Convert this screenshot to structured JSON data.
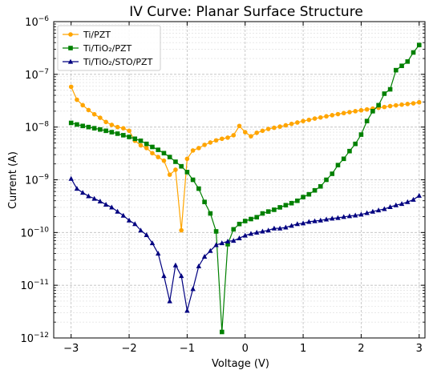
{
  "chart_data": {
    "type": "line",
    "title": "IV Curve: Planar Surface Structure",
    "xlabel": "Voltage (V)",
    "ylabel": "Current (A)",
    "xlim": [
      -3.3,
      3.1
    ],
    "ylim": [
      1e-12,
      1e-06
    ],
    "yscale": "log",
    "x_ticks": [
      -3,
      -2,
      -1,
      0,
      1,
      2,
      3
    ],
    "x_tick_labels": [
      "−3",
      "−2",
      "−1",
      "0",
      "1",
      "2",
      "3"
    ],
    "y_ticks": [
      {
        "value": 1e-12,
        "base": "10",
        "exp": "−12"
      },
      {
        "value": 1e-11,
        "base": "10",
        "exp": "−11"
      },
      {
        "value": 1e-10,
        "base": "10",
        "exp": "−10"
      },
      {
        "value": 1e-09,
        "base": "10",
        "exp": "−9"
      },
      {
        "value": 1e-08,
        "base": "10",
        "exp": "−8"
      },
      {
        "value": 1e-07,
        "base": "10",
        "exp": "−7"
      },
      {
        "value": 1e-06,
        "base": "10",
        "exp": "−6"
      }
    ],
    "grid": true,
    "legend_position": "top-left",
    "series": [
      {
        "name": "Ti/PZT",
        "color": "#FFA500",
        "marker": "circle",
        "x": [
          -3.0,
          -2.9,
          -2.8,
          -2.7,
          -2.6,
          -2.5,
          -2.4,
          -2.3,
          -2.2,
          -2.1,
          -2.0,
          -1.9,
          -1.8,
          -1.7,
          -1.6,
          -1.5,
          -1.4,
          -1.3,
          -1.2,
          -1.1,
          -1.0,
          -0.9,
          -0.8,
          -0.7,
          -0.6,
          -0.5,
          -0.4,
          -0.3,
          -0.2,
          -0.1,
          0.0,
          0.1,
          0.2,
          0.3,
          0.4,
          0.5,
          0.6,
          0.7,
          0.8,
          0.9,
          1.0,
          1.1,
          1.2,
          1.3,
          1.4,
          1.5,
          1.6,
          1.7,
          1.8,
          1.9,
          2.0,
          2.1,
          2.2,
          2.3,
          2.4,
          2.5,
          2.6,
          2.7,
          2.8,
          2.9,
          3.0
        ],
        "y": [
          5.8e-08,
          3.3e-08,
          2.6e-08,
          2.1e-08,
          1.75e-08,
          1.5e-08,
          1.25e-08,
          1.1e-08,
          1e-08,
          9.5e-09,
          8.5e-09,
          5.5e-09,
          4.5e-09,
          4e-09,
          3.2e-09,
          2.7e-09,
          2.3e-09,
          1.25e-09,
          1.55e-09,
          1.1e-10,
          2.5e-09,
          3.6e-09,
          4e-09,
          4.6e-09,
          5.1e-09,
          5.6e-09,
          6e-09,
          6.3e-09,
          7e-09,
          1.05e-08,
          8e-09,
          6.7e-09,
          7.8e-09,
          8.5e-09,
          9.2e-09,
          9.7e-09,
          1.02e-08,
          1.08e-08,
          1.15e-08,
          1.22e-08,
          1.3e-08,
          1.37e-08,
          1.45e-08,
          1.52e-08,
          1.6e-08,
          1.68e-08,
          1.76e-08,
          1.84e-08,
          1.92e-08,
          2e-08,
          2.08e-08,
          2.16e-08,
          2.24e-08,
          2.32e-08,
          2.4e-08,
          2.5e-08,
          2.58e-08,
          2.66e-08,
          2.74e-08,
          2.82e-08,
          2.95e-08
        ]
      },
      {
        "name": "Ti/TiO₂/PZT",
        "color": "#008000",
        "marker": "square",
        "x": [
          -3.0,
          -2.9,
          -2.8,
          -2.7,
          -2.6,
          -2.5,
          -2.4,
          -2.3,
          -2.2,
          -2.1,
          -2.0,
          -1.9,
          -1.8,
          -1.7,
          -1.6,
          -1.5,
          -1.4,
          -1.3,
          -1.2,
          -1.1,
          -1.0,
          -0.9,
          -0.8,
          -0.7,
          -0.6,
          -0.5,
          -0.4,
          -0.3,
          -0.2,
          -0.1,
          0.0,
          0.1,
          0.2,
          0.3,
          0.4,
          0.5,
          0.6,
          0.7,
          0.8,
          0.9,
          1.0,
          1.1,
          1.2,
          1.3,
          1.4,
          1.5,
          1.6,
          1.7,
          1.8,
          1.9,
          2.0,
          2.1,
          2.2,
          2.3,
          2.4,
          2.5,
          2.6,
          2.7,
          2.8,
          2.9,
          3.0
        ],
        "y": [
          1.2e-08,
          1.12e-08,
          1.05e-08,
          1e-08,
          9.5e-09,
          9e-09,
          8.5e-09,
          8e-09,
          7.5e-09,
          7e-09,
          6.5e-09,
          6e-09,
          5.5e-09,
          4.8e-09,
          4.2e-09,
          3.7e-09,
          3.2e-09,
          2.7e-09,
          2.2e-09,
          1.8e-09,
          1.4e-09,
          1e-09,
          6.8e-10,
          3.8e-10,
          2.3e-10,
          1.05e-10,
          1.3e-12,
          6e-11,
          1.15e-10,
          1.45e-10,
          1.65e-10,
          1.8e-10,
          1.95e-10,
          2.3e-10,
          2.5e-10,
          2.7e-10,
          3e-10,
          3.3e-10,
          3.6e-10,
          4e-10,
          4.7e-10,
          5.3e-10,
          6.3e-10,
          7.5e-10,
          1e-09,
          1.3e-09,
          1.9e-09,
          2.5e-09,
          3.5e-09,
          4.8e-09,
          7.2e-09,
          1.3e-08,
          2e-08,
          2.6e-08,
          4.3e-08,
          5.2e-08,
          1.2e-07,
          1.45e-07,
          1.75e-07,
          2.6e-07,
          3.6e-07
        ]
      },
      {
        "name": "Ti/TiO₂/STO/PZT",
        "color": "#000080",
        "marker": "triangle",
        "x": [
          -3.0,
          -2.9,
          -2.8,
          -2.7,
          -2.6,
          -2.5,
          -2.4,
          -2.3,
          -2.2,
          -2.1,
          -2.0,
          -1.9,
          -1.8,
          -1.7,
          -1.6,
          -1.5,
          -1.4,
          -1.3,
          -1.2,
          -1.1,
          -1.0,
          -0.9,
          -0.8,
          -0.7,
          -0.6,
          -0.5,
          -0.4,
          -0.3,
          -0.2,
          -0.1,
          0.0,
          0.1,
          0.2,
          0.3,
          0.4,
          0.5,
          0.6,
          0.7,
          0.8,
          0.9,
          1.0,
          1.1,
          1.2,
          1.3,
          1.4,
          1.5,
          1.6,
          1.7,
          1.8,
          1.9,
          2.0,
          2.1,
          2.2,
          2.3,
          2.4,
          2.5,
          2.6,
          2.7,
          2.8,
          2.9,
          3.0
        ],
        "y": [
          1.05e-09,
          6.8e-10,
          5.7e-10,
          4.9e-10,
          4.4e-10,
          3.9e-10,
          3.4e-10,
          3e-10,
          2.5e-10,
          2.1e-10,
          1.7e-10,
          1.45e-10,
          1.1e-10,
          9e-11,
          6.3e-11,
          4e-11,
          1.5e-11,
          5e-12,
          2.4e-11,
          1.5e-11,
          3.3e-12,
          8.5e-12,
          2.3e-11,
          3.5e-11,
          4.5e-11,
          5.8e-11,
          6.3e-11,
          6.8e-11,
          7e-11,
          7.8e-11,
          8.8e-11,
          9.5e-11,
          1e-10,
          1.05e-10,
          1.1e-10,
          1.2e-10,
          1.2e-10,
          1.25e-10,
          1.35e-10,
          1.45e-10,
          1.5e-10,
          1.6e-10,
          1.65e-10,
          1.7e-10,
          1.78e-10,
          1.85e-10,
          1.9e-10,
          1.98e-10,
          2.05e-10,
          2.12e-10,
          2.2e-10,
          2.35e-10,
          2.5e-10,
          2.65e-10,
          2.8e-10,
          3.05e-10,
          3.3e-10,
          3.5e-10,
          3.8e-10,
          4.2e-10,
          5e-10
        ]
      }
    ]
  }
}
